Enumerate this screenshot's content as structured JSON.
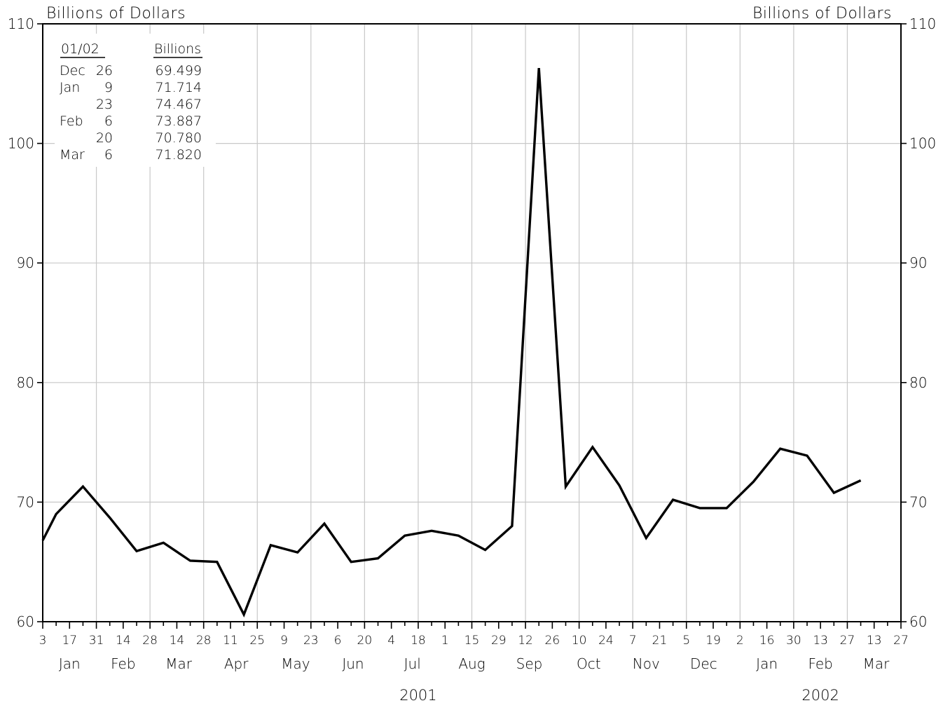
{
  "chart_data": {
    "type": "line",
    "y_axis": {
      "label_left": "Billions of Dollars",
      "label_right": "Billions of Dollars",
      "ylim": [
        60,
        110
      ],
      "ticks": [
        "60",
        "70",
        "80",
        "90",
        "100",
        "110"
      ]
    },
    "x_axis": {
      "start": "2001-01-03",
      "end": "2002-03-27",
      "tick_dates": [
        "2001-01-03",
        "2001-01-17",
        "2001-01-31",
        "2001-02-14",
        "2001-02-28",
        "2001-03-14",
        "2001-03-28",
        "2001-04-11",
        "2001-04-25",
        "2001-05-09",
        "2001-05-23",
        "2001-06-06",
        "2001-06-20",
        "2001-07-04",
        "2001-07-18",
        "2001-08-01",
        "2001-08-15",
        "2001-08-29",
        "2001-09-12",
        "2001-09-26",
        "2001-10-10",
        "2001-10-24",
        "2001-11-07",
        "2001-11-21",
        "2001-12-05",
        "2001-12-19",
        "2002-01-02",
        "2002-01-16",
        "2002-01-30",
        "2002-02-13",
        "2002-02-27",
        "2002-03-13",
        "2002-03-27"
      ],
      "tick_labels": [
        "3",
        "17",
        "31",
        "14",
        "28",
        "14",
        "28",
        "11",
        "25",
        "9",
        "23",
        "6",
        "20",
        "4",
        "18",
        "1",
        "15",
        "29",
        "12",
        "26",
        "10",
        "24",
        "7",
        "21",
        "5",
        "19",
        "2",
        "16",
        "30",
        "13",
        "27",
        "13",
        "27"
      ],
      "minor_tick_dates": [
        "2001-01-10",
        "2001-01-24",
        "2001-02-07",
        "2001-02-21",
        "2001-03-07",
        "2001-03-21",
        "2001-04-04",
        "2001-04-18",
        "2001-05-02",
        "2001-05-16",
        "2001-05-30",
        "2001-06-13",
        "2001-06-27",
        "2001-07-11",
        "2001-07-25",
        "2001-08-08",
        "2001-08-22",
        "2001-09-05",
        "2001-09-19",
        "2001-10-03",
        "2001-10-17",
        "2001-10-31",
        "2001-11-14",
        "2001-11-28",
        "2001-12-12",
        "2001-12-26",
        "2002-01-09",
        "2002-01-23",
        "2002-02-06",
        "2002-02-20",
        "2002-03-06",
        "2002-03-20"
      ],
      "gridline_dates": [
        "2001-01-31",
        "2001-02-28",
        "2001-03-28",
        "2001-04-25",
        "2001-05-23",
        "2001-06-20",
        "2001-07-18",
        "2001-08-15",
        "2001-09-12",
        "2001-10-10",
        "2001-11-07",
        "2001-12-05",
        "2002-01-02",
        "2002-01-30",
        "2002-02-27"
      ],
      "months": [
        {
          "label": "Jan",
          "date": "2001-01-17"
        },
        {
          "label": "Feb",
          "date": "2001-02-14"
        },
        {
          "label": "Mar",
          "date": "2001-03-15"
        },
        {
          "label": "Apr",
          "date": "2001-04-14"
        },
        {
          "label": "May",
          "date": "2001-05-15"
        },
        {
          "label": "Jun",
          "date": "2001-06-14"
        },
        {
          "label": "Jul",
          "date": "2001-07-15"
        },
        {
          "label": "Aug",
          "date": "2001-08-15"
        },
        {
          "label": "Sep",
          "date": "2001-09-14"
        },
        {
          "label": "Oct",
          "date": "2001-10-15"
        },
        {
          "label": "Nov",
          "date": "2001-11-14"
        },
        {
          "label": "Dec",
          "date": "2001-12-14"
        },
        {
          "label": "Jan",
          "date": "2002-01-16"
        },
        {
          "label": "Feb",
          "date": "2002-02-13"
        },
        {
          "label": "Mar",
          "date": "2002-03-14"
        }
      ],
      "years": [
        {
          "label": "2001",
          "date": "2001-07-18"
        },
        {
          "label": "2002",
          "date": "2002-02-13"
        }
      ]
    },
    "grid": true,
    "series": [
      {
        "x": [
          "2001-01-03",
          "2001-01-10",
          "2001-01-24",
          "2001-02-07",
          "2001-02-21",
          "2001-03-07",
          "2001-03-21",
          "2001-04-04",
          "2001-04-18",
          "2001-05-02",
          "2001-05-16",
          "2001-05-30",
          "2001-06-13",
          "2001-06-27",
          "2001-07-11",
          "2001-07-25",
          "2001-08-08",
          "2001-08-22",
          "2001-09-05",
          "2001-09-19",
          "2001-10-03",
          "2001-10-17",
          "2001-10-31",
          "2001-11-14",
          "2001-11-28",
          "2001-12-12",
          "2001-12-26",
          "2002-01-09",
          "2002-01-23",
          "2002-02-06",
          "2002-02-20",
          "2002-03-06"
        ],
        "values": [
          66.8,
          69.0,
          71.3,
          68.7,
          65.9,
          66.6,
          65.1,
          65.0,
          60.6,
          66.4,
          65.8,
          68.2,
          65.0,
          65.3,
          67.2,
          67.6,
          67.2,
          66.0,
          68.0,
          106.3,
          71.3,
          74.6,
          71.4,
          67.0,
          70.2,
          69.5,
          69.499,
          71.714,
          74.467,
          73.887,
          70.78,
          71.82
        ]
      }
    ],
    "legend": {
      "placement": "top-left",
      "header_date": "01/02",
      "header_value": "Billions",
      "rows": [
        {
          "month": "Dec",
          "day": "26",
          "value": "69.499"
        },
        {
          "month": "Jan",
          "day": "9",
          "value": "71.714"
        },
        {
          "month": "",
          "day": "23",
          "value": "74.467"
        },
        {
          "month": "Feb",
          "day": "6",
          "value": "73.887"
        },
        {
          "month": "",
          "day": "20",
          "value": "70.780"
        },
        {
          "month": "Mar",
          "day": "6",
          "value": "71.820"
        }
      ]
    }
  }
}
